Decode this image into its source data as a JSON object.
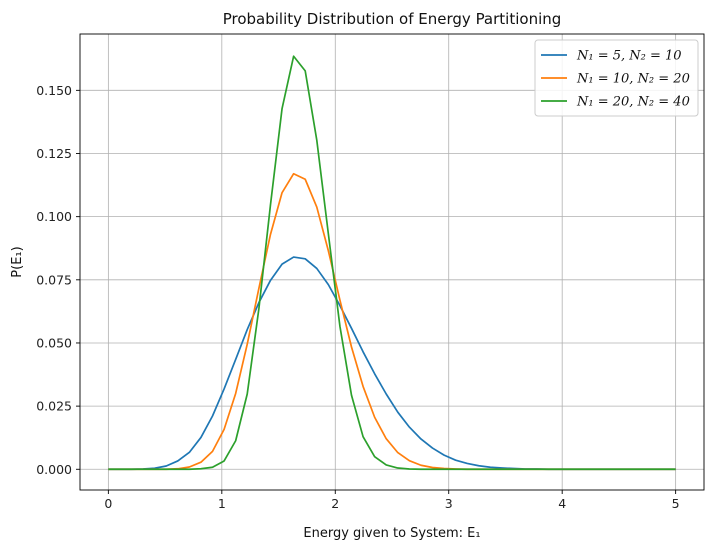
{
  "chart_data": {
    "type": "line",
    "title": "Probability Distribution of Energy Partitioning",
    "xlabel": "Energy given to System: E₁",
    "ylabel": "P(E₁)",
    "xlim": [
      -0.25,
      5.25
    ],
    "ylim": [
      -0.0082,
      0.1723
    ],
    "xticks": [
      0,
      1,
      2,
      3,
      4,
      5
    ],
    "xtick_labels": [
      "0",
      "1",
      "2",
      "3",
      "4",
      "5"
    ],
    "yticks": [
      0.0,
      0.025,
      0.05,
      0.075,
      0.1,
      0.125,
      0.15
    ],
    "ytick_labels": [
      "0.000",
      "0.025",
      "0.050",
      "0.075",
      "0.100",
      "0.125",
      "0.150"
    ],
    "grid": true,
    "legend_position": "upper right",
    "x": [
      0.0,
      0.102,
      0.204,
      0.306,
      0.408,
      0.51,
      0.612,
      0.714,
      0.816,
      0.918,
      1.02,
      1.122,
      1.224,
      1.327,
      1.429,
      1.531,
      1.633,
      1.735,
      1.837,
      1.939,
      2.041,
      2.143,
      2.245,
      2.347,
      2.449,
      2.551,
      2.653,
      2.755,
      2.857,
      2.959,
      3.061,
      3.163,
      3.265,
      3.367,
      3.469,
      3.571,
      3.673,
      3.776,
      3.878,
      3.98,
      4.082,
      4.184,
      4.286,
      4.388,
      4.49,
      4.592,
      4.694,
      4.796,
      4.898,
      5.0
    ],
    "series": [
      {
        "name": "N₁ = 5, N₂ = 10",
        "color": "#1f77b4",
        "values": [
          0.0,
          0.0,
          0.0,
          0.0001,
          0.0004,
          0.0013,
          0.0033,
          0.0067,
          0.0126,
          0.0211,
          0.0318,
          0.0435,
          0.0553,
          0.066,
          0.0748,
          0.0812,
          0.084,
          0.0833,
          0.0795,
          0.0731,
          0.0648,
          0.0558,
          0.0465,
          0.0378,
          0.0298,
          0.0226,
          0.0167,
          0.012,
          0.0084,
          0.0056,
          0.0036,
          0.0023,
          0.0014,
          0.0008,
          0.0005,
          0.0003,
          0.0001,
          0.0001,
          0.0,
          0.0,
          0.0,
          0.0,
          0.0,
          0.0,
          0.0,
          0.0,
          0.0,
          0.0,
          0.0,
          0.0
        ]
      },
      {
        "name": "N₁ = 10, N₂ = 20",
        "color": "#ff7f0e",
        "values": [
          0.0,
          0.0,
          0.0,
          0.0,
          0.0,
          0.0,
          0.0002,
          0.0009,
          0.0028,
          0.0071,
          0.0158,
          0.03,
          0.0495,
          0.0717,
          0.093,
          0.1095,
          0.117,
          0.1148,
          0.1038,
          0.0865,
          0.067,
          0.0484,
          0.0328,
          0.0206,
          0.0121,
          0.0066,
          0.0034,
          0.0016,
          0.0007,
          0.0003,
          0.0001,
          0.0,
          0.0,
          0.0,
          0.0,
          0.0,
          0.0,
          0.0,
          0.0,
          0.0,
          0.0,
          0.0,
          0.0,
          0.0,
          0.0,
          0.0,
          0.0,
          0.0,
          0.0,
          0.0
        ]
      },
      {
        "name": "N₁ = 20, N₂ = 40",
        "color": "#2ca02c",
        "values": [
          0.0,
          0.0,
          0.0,
          0.0,
          0.0,
          0.0,
          0.0,
          0.0,
          0.0002,
          0.0008,
          0.0033,
          0.0113,
          0.0298,
          0.0637,
          0.1047,
          0.1428,
          0.1635,
          0.1577,
          0.1303,
          0.0932,
          0.0566,
          0.0293,
          0.0129,
          0.005,
          0.0017,
          0.0005,
          0.0001,
          0.0,
          0.0,
          0.0,
          0.0,
          0.0,
          0.0,
          0.0,
          0.0,
          0.0,
          0.0,
          0.0,
          0.0,
          0.0,
          0.0,
          0.0,
          0.0,
          0.0,
          0.0,
          0.0,
          0.0,
          0.0,
          0.0,
          0.0
        ]
      }
    ]
  }
}
